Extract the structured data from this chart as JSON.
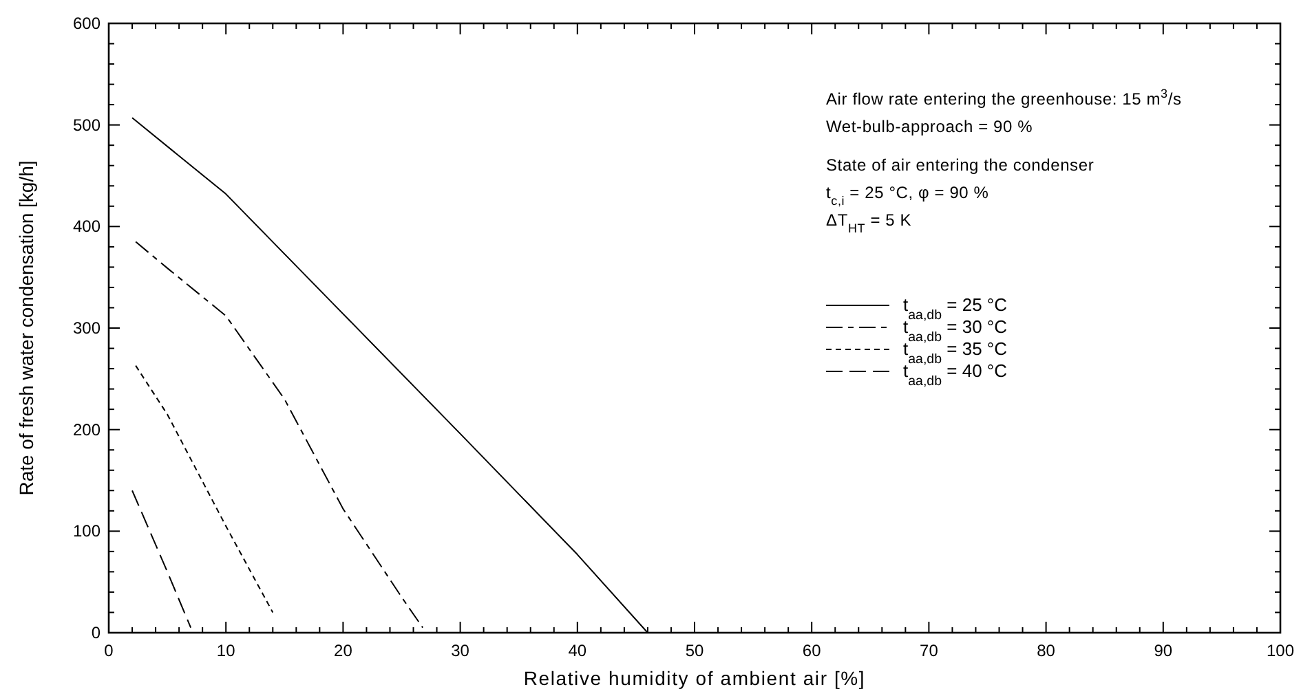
{
  "chart_data": {
    "type": "line",
    "xlabel": "Relative humidity of ambient air [%]",
    "ylabel": "Rate of fresh water condensation [kg/h]",
    "xlim": [
      0,
      100
    ],
    "ylim": [
      0,
      600
    ],
    "xticks": [
      0,
      {
        "value": 2,
        "label": null
      },
      {
        "value": 4,
        "label": null
      },
      {
        "value": 6,
        "label": null
      },
      {
        "value": 8,
        "label": null
      },
      10,
      {
        "value": 12,
        "label": null
      },
      {
        "value": 14,
        "label": null
      },
      {
        "value": 16,
        "label": null
      },
      {
        "value": 18,
        "label": null
      },
      20,
      {
        "value": 22,
        "label": null
      },
      {
        "value": 24,
        "label": null
      },
      {
        "value": 26,
        "label": null
      },
      {
        "value": 28,
        "label": null
      },
      30,
      {
        "value": 32,
        "label": null
      },
      {
        "value": 34,
        "label": null
      },
      {
        "value": 36,
        "label": null
      },
      {
        "value": 38,
        "label": null
      },
      40,
      {
        "value": 42,
        "label": null
      },
      {
        "value": 44,
        "label": null
      },
      {
        "value": 46,
        "label": null
      },
      {
        "value": 48,
        "label": null
      },
      50,
      {
        "value": 52,
        "label": null
      },
      {
        "value": 54,
        "label": null
      },
      {
        "value": 56,
        "label": null
      },
      {
        "value": 58,
        "label": null
      },
      60,
      {
        "value": 62,
        "label": null
      },
      {
        "value": 64,
        "label": null
      },
      {
        "value": 66,
        "label": null
      },
      {
        "value": 68,
        "label": null
      },
      70,
      {
        "value": 72,
        "label": null
      },
      {
        "value": 74,
        "label": null
      },
      {
        "value": 76,
        "label": null
      },
      {
        "value": 78,
        "label": null
      },
      80,
      {
        "value": 82,
        "label": null
      },
      {
        "value": 84,
        "label": null
      },
      {
        "value": 86,
        "label": null
      },
      {
        "value": 88,
        "label": null
      },
      90,
      {
        "value": 92,
        "label": null
      },
      {
        "value": 94,
        "label": null
      },
      {
        "value": 96,
        "label": null
      },
      {
        "value": 98,
        "label": null
      },
      100
    ],
    "yticks": [
      0,
      {
        "value": 20,
        "label": null
      },
      {
        "value": 40,
        "label": null
      },
      {
        "value": 60,
        "label": null
      },
      {
        "value": 80,
        "label": null
      },
      100,
      {
        "value": 120,
        "label": null
      },
      {
        "value": 140,
        "label": null
      },
      {
        "value": 160,
        "label": null
      },
      {
        "value": 180,
        "label": null
      },
      200,
      {
        "value": 220,
        "label": null
      },
      {
        "value": 240,
        "label": null
      },
      {
        "value": 260,
        "label": null
      },
      {
        "value": 280,
        "label": null
      },
      300,
      {
        "value": 320,
        "label": null
      },
      {
        "value": 340,
        "label": null
      },
      {
        "value": 360,
        "label": null
      },
      {
        "value": 380,
        "label": null
      },
      400,
      {
        "value": 420,
        "label": null
      },
      {
        "value": 440,
        "label": null
      },
      {
        "value": 460,
        "label": null
      },
      {
        "value": 480,
        "label": null
      },
      500,
      {
        "value": 520,
        "label": null
      },
      {
        "value": 540,
        "label": null
      },
      {
        "value": 560,
        "label": null
      },
      {
        "value": 580,
        "label": null
      },
      600
    ],
    "grid": false,
    "legend": "right",
    "annotations": [
      "Air flow rate entering the greenhouse: 15 m$^{3}$/s",
      "Wet-bulb-approach = 90 %",
      "State of air entering the condenser",
      "t$_{c,i}$ = 25 °C, φ = 90 %",
      "ΔT$_{HT}$ = 5 K"
    ],
    "series": [
      {
        "name": "t$_{aa,db}$ = 25 °C",
        "color": "#000000",
        "line_style": "solid",
        "x": [
          2,
          10,
          20,
          30,
          40,
          46
        ],
        "values": [
          507,
          432,
          314,
          196,
          77,
          0
        ]
      },
      {
        "name": "t$_{aa,db}$ = 30 °C",
        "color": "#000000",
        "line_style": "dashdot",
        "x": [
          2.3,
          5,
          10,
          15,
          20,
          25,
          26.8
        ],
        "values": [
          385,
          359,
          312,
          230,
          122,
          35,
          5
        ]
      },
      {
        "name": "t$_{aa,db}$ = 35 °C",
        "color": "#000000",
        "line_style": "dashed",
        "x": [
          2.3,
          5,
          10,
          14
        ],
        "values": [
          263,
          215,
          105,
          20
        ]
      },
      {
        "name": "t$_{aa,db}$ = 40 °C",
        "color": "#000000",
        "line_style": "longdash",
        "x": [
          2,
          5,
          7
        ],
        "values": [
          140,
          60,
          5
        ]
      }
    ]
  }
}
